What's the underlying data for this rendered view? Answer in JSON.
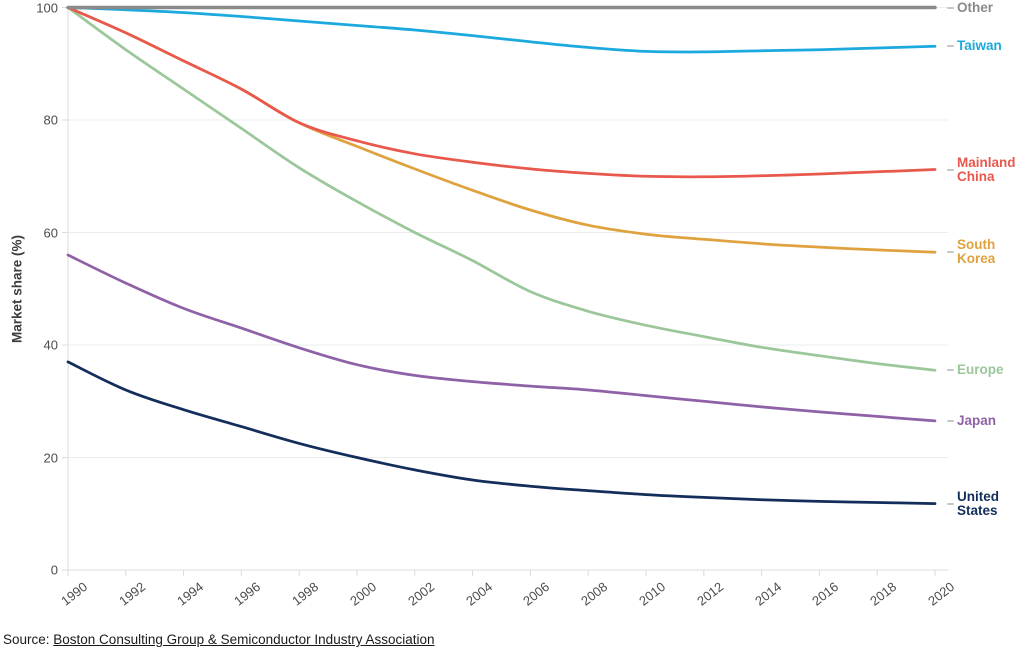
{
  "chart": {
    "y_axis": {
      "title": "Market share (%)",
      "ticks": [
        0,
        20,
        40,
        60,
        80,
        100
      ]
    },
    "x_axis": {
      "ticks": [
        1990,
        1992,
        1994,
        1996,
        1998,
        2000,
        2002,
        2004,
        2006,
        2008,
        2010,
        2012,
        2014,
        2016,
        2018,
        2020
      ]
    },
    "source": {
      "prefix": "Source: ",
      "link_text": "Boston Consulting Group & Semiconductor Industry Association"
    },
    "colors": {
      "grid": "#ececec",
      "axis": "#dbdbdb",
      "tick_text": "#4d4d4d",
      "label_dash": "#c6c6c6"
    }
  },
  "chart_data": {
    "type": "line",
    "title": "",
    "xlabel": "",
    "ylabel": "Market share (%)",
    "x": [
      1990,
      1992,
      1994,
      1996,
      1998,
      2000,
      2002,
      2004,
      2006,
      2008,
      2010,
      2012,
      2014,
      2016,
      2018,
      2020
    ],
    "xlim": [
      1990,
      2020
    ],
    "ylim": [
      0,
      100
    ],
    "grid": true,
    "legend_position": "line-end-labels-right",
    "series": [
      {
        "name": "Europe",
        "color": "#9bc79a",
        "label_lines": [
          "Europe"
        ],
        "stroke": 2.75,
        "values": [
          100,
          92.5,
          85.5,
          78.5,
          71.5,
          65.5,
          60.0,
          55.0,
          49.5,
          46.0,
          43.5,
          41.5,
          39.6,
          38.1,
          36.7,
          35.5
        ]
      },
      {
        "name": "South Korea",
        "color": "#dfa23e",
        "label_lines": [
          "South",
          "Korea"
        ],
        "stroke": 2.75,
        "values": [
          100,
          95.5,
          90.5,
          85.5,
          79.5,
          75.3,
          71.3,
          67.5,
          64.0,
          61.3,
          59.7,
          58.8,
          58.0,
          57.4,
          56.9,
          56.5
        ]
      },
      {
        "name": "Mainland China",
        "color": "#e8584c",
        "label_lines": [
          "Mainland",
          "China"
        ],
        "stroke": 2.75,
        "values": [
          100,
          95.5,
          90.5,
          85.5,
          79.5,
          76.3,
          74.0,
          72.5,
          71.3,
          70.5,
          70.0,
          69.9,
          70.1,
          70.4,
          70.8,
          71.2
        ]
      },
      {
        "name": "Taiwan",
        "color": "#1ba9de",
        "label_lines": [
          "Taiwan"
        ],
        "stroke": 2.75,
        "values": [
          100,
          99.6,
          99.1,
          98.4,
          97.6,
          96.8,
          96.0,
          95.0,
          93.9,
          92.9,
          92.2,
          92.1,
          92.3,
          92.5,
          92.8,
          93.1
        ]
      },
      {
        "name": "Other",
        "color": "#8a8a8a",
        "label_lines": [
          "Other"
        ],
        "stroke": 3.5,
        "values": [
          100,
          100,
          100,
          100,
          100,
          100,
          100,
          100,
          100,
          100,
          100,
          100,
          100,
          100,
          100,
          100
        ]
      },
      {
        "name": "Japan",
        "color": "#8f62a8",
        "label_lines": [
          "Japan"
        ],
        "stroke": 2.75,
        "values": [
          56,
          51,
          46.5,
          43,
          39.5,
          36.5,
          34.6,
          33.5,
          32.7,
          32.0,
          31.0,
          30.0,
          29.0,
          28.1,
          27.3,
          26.5
        ]
      },
      {
        "name": "United States",
        "color": "#132e5b",
        "label_lines": [
          "United",
          "States"
        ],
        "stroke": 2.75,
        "values": [
          37,
          32,
          28.5,
          25.5,
          22.5,
          20.0,
          17.8,
          16.0,
          14.9,
          14.1,
          13.4,
          12.9,
          12.5,
          12.2,
          12.0,
          11.8
        ]
      }
    ]
  }
}
